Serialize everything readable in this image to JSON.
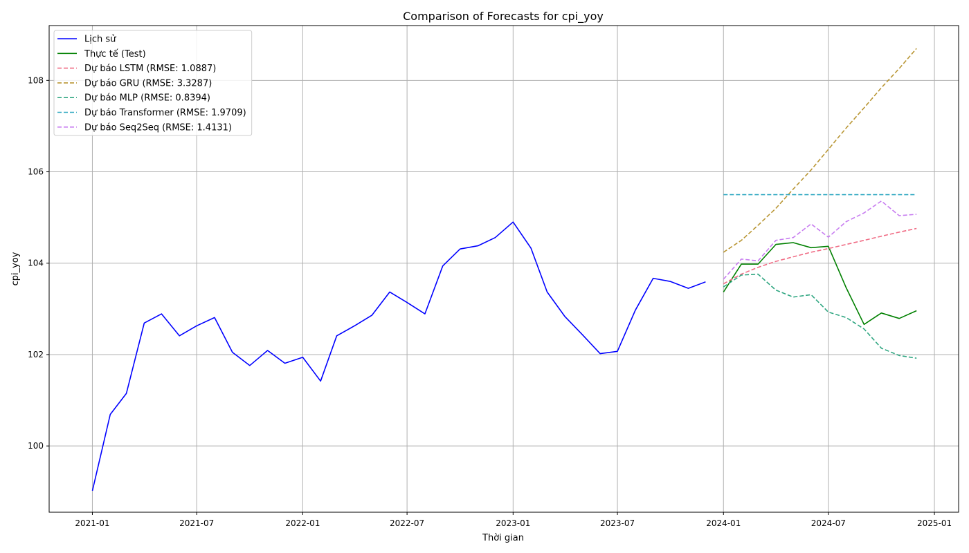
{
  "chart_data": {
    "type": "line",
    "title": "Comparison of Forecasts for cpi_yoy",
    "xlabel": "Thời gian",
    "ylabel": "cpi_yoy",
    "grid": true,
    "legend_position": "top-left",
    "xlim": [
      "2020-10-18",
      "2025-02-12"
    ],
    "ylim": [
      98.55,
      109.2
    ],
    "x_ticks": [
      "2021-01",
      "2021-07",
      "2022-01",
      "2022-07",
      "2023-01",
      "2023-07",
      "2024-01",
      "2024-07",
      "2025-01"
    ],
    "y_ticks": [
      100,
      102,
      104,
      106,
      108
    ],
    "series": [
      {
        "name": "Lịch sử",
        "color": "#0000ff",
        "style": "solid",
        "x": [
          "2021-01",
          "2021-02",
          "2021-03",
          "2021-04",
          "2021-05",
          "2021-06",
          "2021-07",
          "2021-08",
          "2021-09",
          "2021-10",
          "2021-11",
          "2021-12",
          "2022-01",
          "2022-02",
          "2022-03",
          "2022-04",
          "2022-05",
          "2022-06",
          "2022-07",
          "2022-08",
          "2022-09",
          "2022-10",
          "2022-11",
          "2022-12",
          "2023-01",
          "2023-02",
          "2023-03",
          "2023-04",
          "2023-05",
          "2023-06",
          "2023-07",
          "2023-08",
          "2023-09",
          "2023-10",
          "2023-11",
          "2023-12"
        ],
        "values": [
          99.02,
          100.69,
          101.15,
          102.69,
          102.89,
          102.41,
          102.63,
          102.81,
          102.05,
          101.76,
          102.09,
          101.81,
          101.94,
          101.42,
          102.41,
          102.63,
          102.86,
          103.37,
          103.14,
          102.89,
          103.94,
          104.31,
          104.38,
          104.56,
          104.9,
          104.33,
          103.37,
          102.83,
          102.44,
          102.02,
          102.07,
          102.97,
          103.67,
          103.6,
          103.45,
          103.59
        ]
      },
      {
        "name": "Thực tế (Test)",
        "color": "#008000",
        "style": "solid",
        "x": [
          "2024-01",
          "2024-02",
          "2024-03",
          "2024-04",
          "2024-05",
          "2024-06",
          "2024-07",
          "2024-08",
          "2024-09",
          "2024-10",
          "2024-11",
          "2024-12"
        ],
        "values": [
          103.37,
          103.98,
          103.98,
          104.41,
          104.45,
          104.34,
          104.37,
          103.46,
          102.66,
          102.91,
          102.79,
          102.96
        ]
      },
      {
        "name": "Dự báo LSTM (RMSE: 1.0887)",
        "color": "#f06b84",
        "style": "dashed",
        "x": [
          "2024-01",
          "2024-02",
          "2024-03",
          "2024-04",
          "2024-05",
          "2024-06",
          "2024-07",
          "2024-08",
          "2024-09",
          "2024-10",
          "2024-11",
          "2024-12"
        ],
        "values": [
          103.55,
          103.76,
          103.91,
          104.04,
          104.14,
          104.24,
          104.32,
          104.41,
          104.5,
          104.59,
          104.68,
          104.76
        ]
      },
      {
        "name": "Dự báo GRU (RMSE: 3.3287)",
        "color": "#b99634",
        "style": "dashed",
        "x": [
          "2024-01",
          "2024-02",
          "2024-03",
          "2024-04",
          "2024-05",
          "2024-06",
          "2024-07",
          "2024-08",
          "2024-09",
          "2024-10",
          "2024-11",
          "2024-12"
        ],
        "values": [
          104.24,
          104.5,
          104.83,
          105.2,
          105.62,
          106.04,
          106.49,
          106.96,
          107.4,
          107.84,
          108.26,
          108.7
        ]
      },
      {
        "name": "Dự báo MLP (RMSE: 0.8394)",
        "color": "#2fa681",
        "style": "dashed",
        "x": [
          "2024-01",
          "2024-02",
          "2024-03",
          "2024-04",
          "2024-05",
          "2024-06",
          "2024-07",
          "2024-08",
          "2024-09",
          "2024-10",
          "2024-11",
          "2024-12"
        ],
        "values": [
          103.48,
          103.74,
          103.76,
          103.41,
          103.26,
          103.31,
          102.93,
          102.81,
          102.56,
          102.14,
          101.98,
          101.92
        ]
      },
      {
        "name": "Dự báo Transformer (RMSE: 1.9709)",
        "color": "#32a9c2",
        "style": "dashed",
        "x": [
          "2024-01",
          "2024-02",
          "2024-03",
          "2024-04",
          "2024-05",
          "2024-06",
          "2024-07",
          "2024-08",
          "2024-09",
          "2024-10",
          "2024-11",
          "2024-12"
        ],
        "values": [
          105.5,
          105.5,
          105.5,
          105.5,
          105.5,
          105.5,
          105.5,
          105.5,
          105.5,
          105.5,
          105.5,
          105.5
        ]
      },
      {
        "name": "Dự báo Seq2Seq (RMSE: 1.4131)",
        "color": "#c77cf0",
        "style": "dashed",
        "x": [
          "2024-01",
          "2024-02",
          "2024-03",
          "2024-04",
          "2024-05",
          "2024-06",
          "2024-07",
          "2024-08",
          "2024-09",
          "2024-10",
          "2024-11",
          "2024-12"
        ],
        "values": [
          103.65,
          104.09,
          104.05,
          104.5,
          104.56,
          104.86,
          104.57,
          104.91,
          105.1,
          105.36,
          105.04,
          105.07
        ]
      }
    ]
  }
}
